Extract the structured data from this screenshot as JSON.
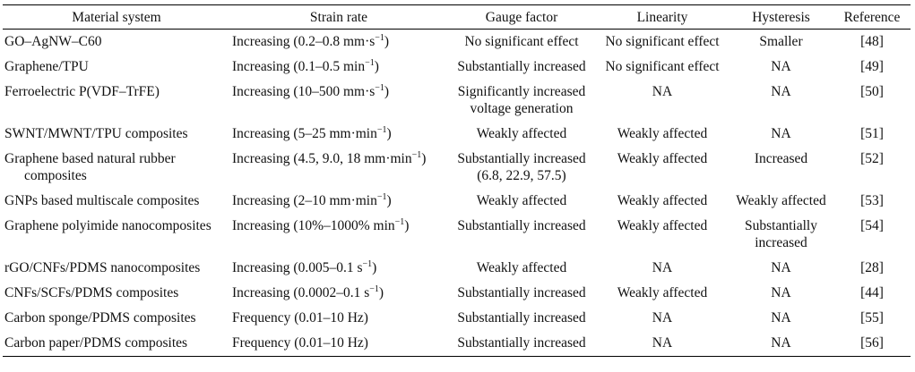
{
  "table": {
    "headers": [
      "Material system",
      "Strain rate",
      "Gauge factor",
      "Linearity",
      "Hysteresis",
      "Reference"
    ],
    "rows": [
      {
        "material": "GO–AgNW–C60",
        "material_cont": "",
        "strain_rate": "Increasing (0.2–0.8 mm·s",
        "strain_sup": "−1",
        "strain_suffix": ")",
        "gauge": "No significant effect",
        "linearity": "No significant effect",
        "hysteresis": "Smaller",
        "reference": "[48]"
      },
      {
        "material": "Graphene/TPU",
        "material_cont": "",
        "strain_rate": "Increasing (0.1–0.5 min",
        "strain_sup": "−1",
        "strain_suffix": ")",
        "gauge": "Substantially increased",
        "linearity": "No significant effect",
        "hysteresis": "NA",
        "reference": "[49]"
      },
      {
        "material": "Ferroelectric P(VDF–TrFE)",
        "material_cont": "",
        "strain_rate": "Increasing (10–500 mm·s",
        "strain_sup": "−1",
        "strain_suffix": ")",
        "gauge": "Significantly increased\nvoltage generation",
        "linearity": "NA",
        "hysteresis": "NA",
        "reference": "[50]"
      },
      {
        "material": "SWNT/MWNT/TPU composites",
        "material_cont": "",
        "strain_rate": "Increasing (5–25 mm·min",
        "strain_sup": "−1",
        "strain_suffix": ")",
        "gauge": "Weakly affected",
        "linearity": "Weakly affected",
        "hysteresis": "NA",
        "reference": "[51]"
      },
      {
        "material": "Graphene based natural rubber",
        "material_cont": "composites",
        "strain_rate": "Increasing (4.5, 9.0, 18 mm·min",
        "strain_sup": "−1",
        "strain_suffix": ")",
        "gauge": "Substantially increased\n(6.8, 22.9, 57.5)",
        "linearity": "Weakly affected",
        "hysteresis": "Increased",
        "reference": "[52]"
      },
      {
        "material": "GNPs based multiscale composites",
        "material_cont": "",
        "strain_rate": "Increasing (2–10 mm·min",
        "strain_sup": "−1",
        "strain_suffix": ")",
        "gauge": "Weakly affected",
        "linearity": "Weakly affected",
        "hysteresis": "Weakly affected",
        "reference": "[53]"
      },
      {
        "material": "Graphene polyimide nanocomposites",
        "material_cont": "",
        "strain_rate": "Increasing (10%–1000% min",
        "strain_sup": "−1",
        "strain_suffix": ")",
        "gauge": "Substantially increased",
        "linearity": "Weakly affected",
        "hysteresis": "Substantially\nincreased",
        "reference": "[54]"
      },
      {
        "material": "rGO/CNFs/PDMS nanocomposites",
        "material_cont": "",
        "strain_rate": "Increasing (0.005–0.1 s",
        "strain_sup": "−1",
        "strain_suffix": ")",
        "gauge": "Weakly affected",
        "linearity": "NA",
        "hysteresis": "NA",
        "reference": "[28]"
      },
      {
        "material": "CNFs/SCFs/PDMS composites",
        "material_cont": "",
        "strain_rate": "Increasing (0.0002–0.1 s",
        "strain_sup": "−1",
        "strain_suffix": ")",
        "gauge": "Substantially increased",
        "linearity": "Weakly affected",
        "hysteresis": "NA",
        "reference": "[44]"
      },
      {
        "material": "Carbon sponge/PDMS composites",
        "material_cont": "",
        "strain_rate": "Frequency (0.01–10 Hz)",
        "strain_sup": "",
        "strain_suffix": "",
        "gauge": "Substantially increased",
        "linearity": "NA",
        "hysteresis": "NA",
        "reference": "[55]"
      },
      {
        "material": "Carbon paper/PDMS composites",
        "material_cont": "",
        "strain_rate": "Frequency (0.01–10 Hz)",
        "strain_sup": "",
        "strain_suffix": "",
        "gauge": "Substantially increased",
        "linearity": "NA",
        "hysteresis": "NA",
        "reference": "[56]"
      }
    ]
  }
}
